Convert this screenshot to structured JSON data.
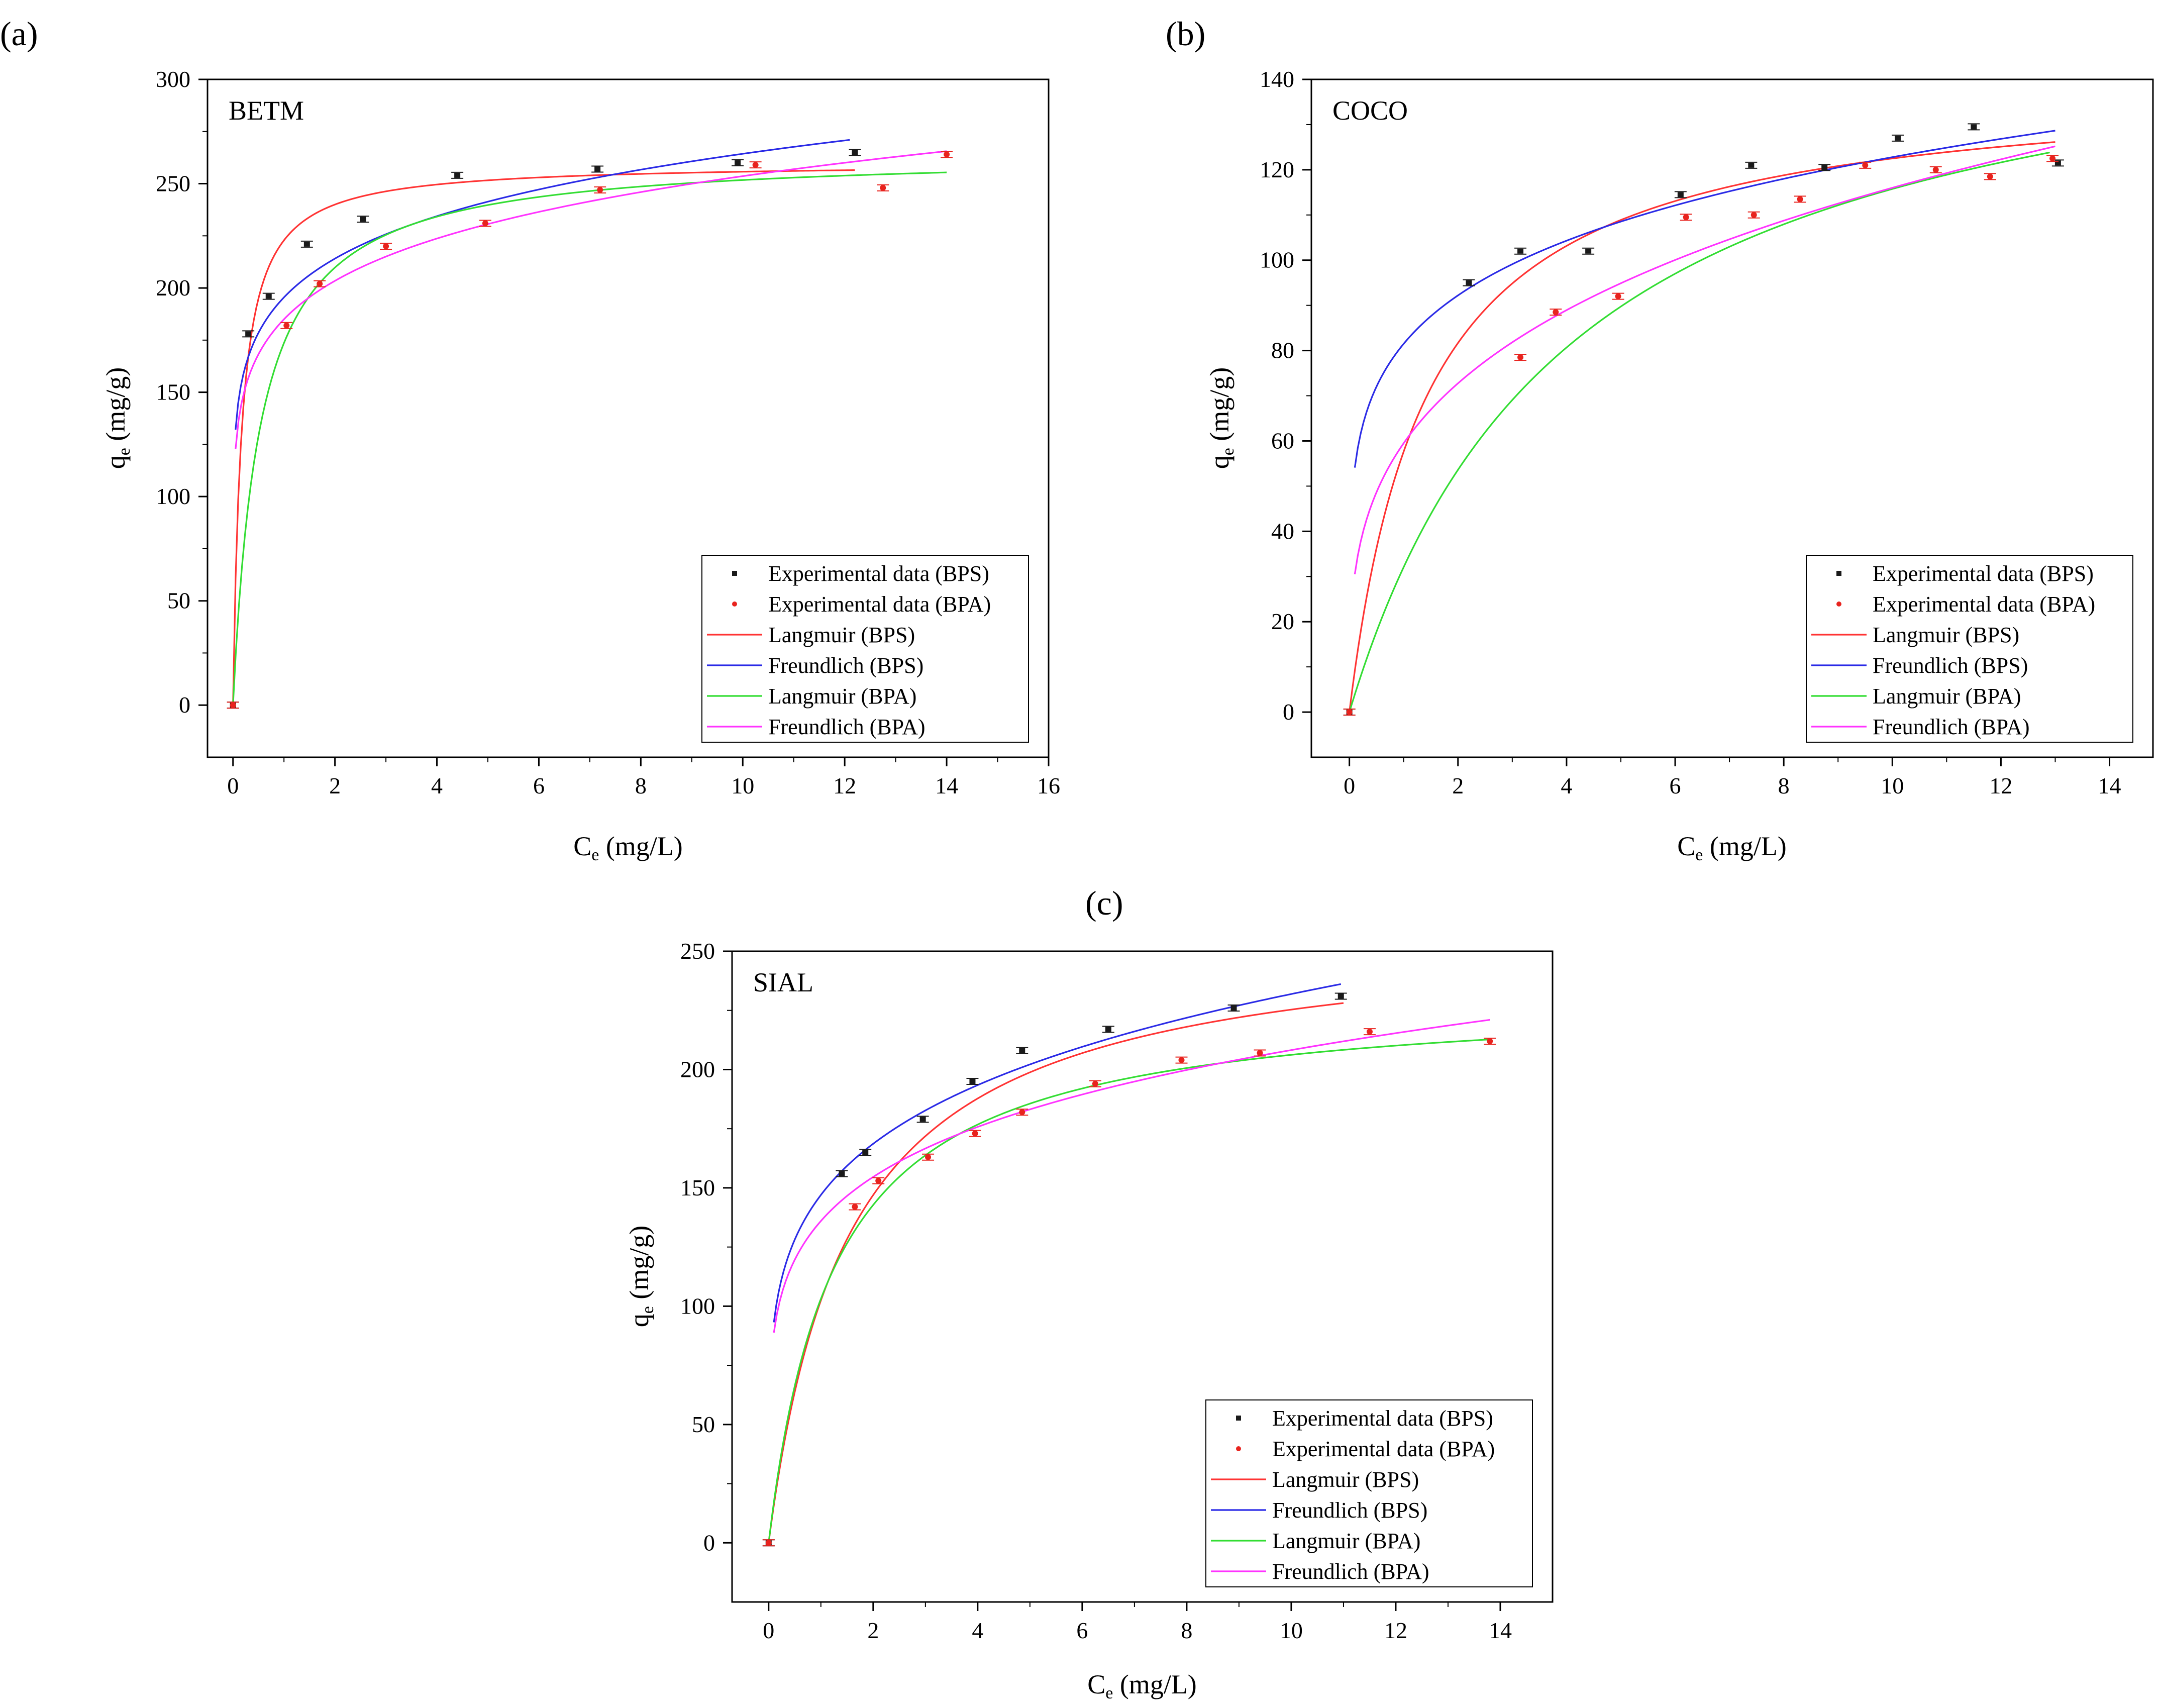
{
  "chart_data": [
    {
      "type": "scatter",
      "panel_label": "(a)",
      "title": "BETM",
      "xlabel": {
        "main": "C",
        "sub": "e",
        "unit": " (mg/L)"
      },
      "ylabel": {
        "main": "q",
        "sub": "e",
        "unit": " (mg/g)"
      },
      "xlim": [
        -0.5,
        16
      ],
      "ylim": [
        -25,
        300
      ],
      "xticks": [
        0,
        2,
        4,
        6,
        8,
        10,
        12,
        14,
        16
      ],
      "yticks": [
        0,
        50,
        100,
        150,
        200,
        250,
        300
      ],
      "legend_position": "bottom-right",
      "legend": [
        "Experimental data (BPS)",
        "Experimental data (BPA)",
        "Langmuir (BPS)",
        "Freundlich (BPS)",
        "Langmuir (BPA)",
        "Freundlich (BPA)"
      ],
      "colors": {
        "exp_bps": "#1a1a1a",
        "exp_bpa": "#e8231e",
        "langmuir_bps": "#ff3333",
        "freundlich_bps": "#2a2ae6",
        "langmuir_bpa": "#33dd33",
        "freundlich_bpa": "#ff33ff"
      },
      "series": [
        {
          "name": "Experimental data (BPS)",
          "kind": "points",
          "x": [
            0,
            0.3,
            0.7,
            1.45,
            2.55,
            4.4,
            7.15,
            9.9,
            12.2
          ],
          "y": [
            0,
            178,
            196,
            221,
            233,
            254,
            257,
            260,
            265
          ]
        },
        {
          "name": "Experimental data (BPA)",
          "kind": "points",
          "x": [
            0,
            1.05,
            1.7,
            3.0,
            4.95,
            7.2,
            10.25,
            12.75,
            14.0
          ],
          "y": [
            0,
            182,
            202,
            220,
            231,
            247,
            259,
            248,
            264
          ]
        },
        {
          "name": "Langmuir (BPS)",
          "kind": "langmuir",
          "qmax": 260,
          "K": 6,
          "xrange": [
            0,
            12.2
          ]
        },
        {
          "name": "Freundlich (BPS)",
          "kind": "freundlich",
          "Kf": 195.5,
          "n": 0.131,
          "xrange": [
            0.05,
            12.1
          ]
        },
        {
          "name": "Langmuir (BPA)",
          "kind": "langmuir",
          "qmax": 265,
          "K": 1.9,
          "xrange": [
            0,
            14
          ]
        },
        {
          "name": "Freundlich (BPA)",
          "kind": "freundlich",
          "Kf": 185,
          "n": 0.137,
          "xrange": [
            0.05,
            14
          ]
        }
      ]
    },
    {
      "type": "scatter",
      "panel_label": "(b)",
      "title": "COCO",
      "xlabel": {
        "main": "C",
        "sub": "e",
        "unit": " (mg/L)"
      },
      "ylabel": {
        "main": "q",
        "sub": "e",
        "unit": " (mg/g)"
      },
      "xlim": [
        -0.7,
        14.8
      ],
      "ylim": [
        -10,
        140
      ],
      "xticks": [
        0,
        2,
        4,
        6,
        8,
        10,
        12,
        14
      ],
      "yticks": [
        0,
        20,
        40,
        60,
        80,
        100,
        120,
        140
      ],
      "legend_position": "bottom-right",
      "legend": [
        "Experimental data (BPS)",
        "Experimental data (BPA)",
        "Langmuir (BPS)",
        "Freundlich (BPS)",
        "Langmuir (BPA)",
        "Freundlich (BPA)"
      ],
      "colors": {
        "exp_bps": "#1a1a1a",
        "exp_bpa": "#e8231e",
        "langmuir_bps": "#ff3333",
        "freundlich_bps": "#2a2ae6",
        "langmuir_bpa": "#33dd33",
        "freundlich_bpa": "#ff33ff"
      },
      "series": [
        {
          "name": "Experimental data (BPS)",
          "kind": "points",
          "x": [
            0,
            2.2,
            3.15,
            4.4,
            6.1,
            7.4,
            8.75,
            10.1,
            11.5,
            13.05
          ],
          "y": [
            0,
            95,
            102,
            102,
            114.5,
            121,
            120.5,
            127,
            129.5,
            121.5
          ]
        },
        {
          "name": "Experimental data (BPA)",
          "kind": "points",
          "x": [
            0,
            3.15,
            3.8,
            4.95,
            6.2,
            7.45,
            8.3,
            9.5,
            10.8,
            11.8,
            12.95
          ],
          "y": [
            0,
            78.5,
            88.5,
            92,
            109.5,
            110,
            113.5,
            121,
            120,
            118.5,
            122.5
          ]
        },
        {
          "name": "Langmuir (BPS)",
          "kind": "langmuir",
          "qmax": 140,
          "K": 0.7,
          "xrange": [
            0,
            13
          ]
        },
        {
          "name": "Freundlich (BPS)",
          "kind": "freundlich",
          "Kf": 81.5,
          "n": 0.178,
          "xrange": [
            0.1,
            13
          ]
        },
        {
          "name": "Langmuir (BPA)",
          "kind": "langmuir",
          "qmax": 163,
          "K": 0.245,
          "xrange": [
            0,
            12.9
          ]
        },
        {
          "name": "Freundlich (BPA)",
          "kind": "freundlich",
          "Kf": 59.5,
          "n": 0.29,
          "xrange": [
            0.1,
            13
          ]
        }
      ]
    },
    {
      "type": "scatter",
      "panel_label": "(c)",
      "title": "SIAL",
      "xlabel": {
        "main": "C",
        "sub": "e",
        "unit": " (mg/L)"
      },
      "ylabel": {
        "main": "q",
        "sub": "e",
        "unit": " (mg/g)"
      },
      "xlim": [
        -0.7,
        15
      ],
      "ylim": [
        -25,
        250
      ],
      "xticks": [
        0,
        2,
        4,
        6,
        8,
        10,
        12,
        14
      ],
      "yticks": [
        0,
        50,
        100,
        150,
        200,
        250
      ],
      "legend_position": "bottom-right",
      "legend": [
        "Experimental data (BPS)",
        "Experimental data (BPA)",
        "Langmuir (BPS)",
        "Freundlich (BPS)",
        "Langmuir (BPA)",
        "Freundlich (BPA)"
      ],
      "colors": {
        "exp_bps": "#1a1a1a",
        "exp_bpa": "#e8231e",
        "langmuir_bps": "#ff3333",
        "freundlich_bps": "#2a2ae6",
        "langmuir_bpa": "#33dd33",
        "freundlich_bpa": "#ff33ff"
      },
      "series": [
        {
          "name": "Experimental data (BPS)",
          "kind": "points",
          "x": [
            0,
            1.4,
            1.85,
            2.95,
            3.9,
            4.85,
            6.5,
            8.9,
            10.95
          ],
          "y": [
            0,
            156,
            165,
            179,
            195,
            208,
            217,
            226,
            231
          ]
        },
        {
          "name": "Experimental data (BPA)",
          "kind": "points",
          "x": [
            0,
            1.65,
            2.1,
            3.05,
            3.95,
            4.85,
            6.25,
            7.9,
            9.4,
            11.5,
            13.8
          ],
          "y": [
            0,
            142,
            153,
            163,
            173,
            182,
            194,
            204,
            207,
            216,
            212
          ]
        },
        {
          "name": "Langmuir (BPS)",
          "kind": "langmuir",
          "qmax": 260,
          "K": 0.65,
          "xrange": [
            0,
            11
          ]
        },
        {
          "name": "Freundlich (BPS)",
          "kind": "freundlich",
          "Kf": 147,
          "n": 0.198,
          "xrange": [
            0.1,
            10.95
          ]
        },
        {
          "name": "Langmuir (BPA)",
          "kind": "langmuir",
          "qmax": 232,
          "K": 0.8,
          "xrange": [
            0,
            13.8
          ]
        },
        {
          "name": "Freundlich (BPA)",
          "kind": "freundlich",
          "Kf": 136,
          "n": 0.185,
          "xrange": [
            0.1,
            13.8
          ]
        }
      ]
    }
  ]
}
